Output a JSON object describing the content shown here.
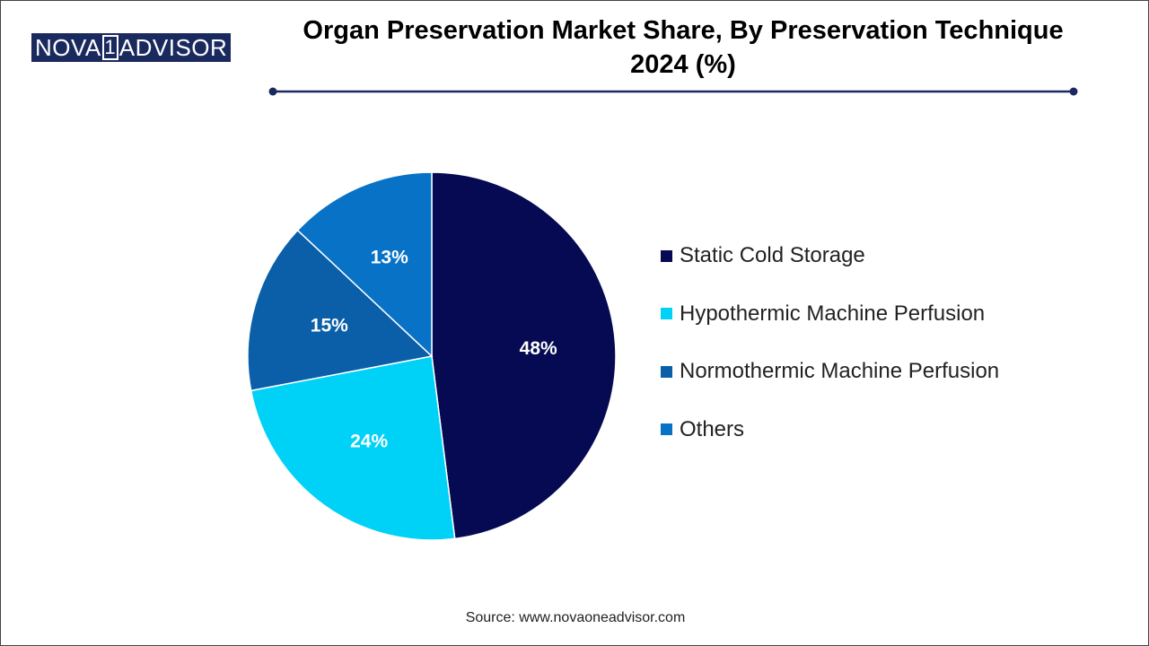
{
  "logo": {
    "left": "NOVA",
    "digit": "1",
    "right": "ADVISOR"
  },
  "source": "Source: www.novaoneadvisor.com",
  "chart_data": {
    "type": "pie",
    "title": "Organ Preservation Market Share, By Preservation Technique 2024 (%)",
    "title_line1": "Organ Preservation Market Share, By Preservation Technique",
    "title_line2": "2024 (%)",
    "legend_position": "right",
    "start_angle_deg": 0,
    "direction": "clockwise",
    "slices": [
      {
        "label": "Static Cold Storage",
        "value": 48,
        "value_label": "48%",
        "color": "#050a52"
      },
      {
        "label": "Hypothermic Machine Perfusion",
        "value": 24,
        "value_label": "24%",
        "color": "#00d2f7"
      },
      {
        "label": "Normothermic Machine Perfusion",
        "value": 15,
        "value_label": "15%",
        "color": "#0a5fa8"
      },
      {
        "label": "Others",
        "value": 13,
        "value_label": "13%",
        "color": "#0873c6"
      }
    ]
  },
  "colors": {
    "accent": "#1b2a5e",
    "rule": "#1b2a5e"
  }
}
